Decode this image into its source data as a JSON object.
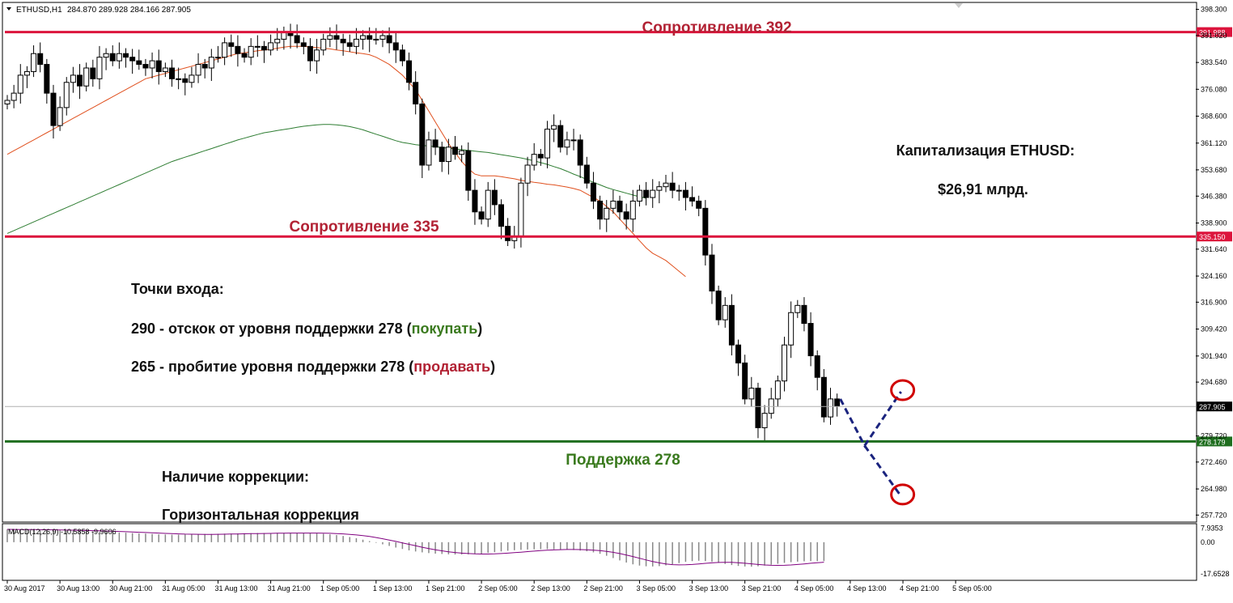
{
  "header": {
    "symbol": "ETHUSD,H1",
    "ohlc": "284.870 289.928 284.166 287.905"
  },
  "colors": {
    "resistance": "#dc143c",
    "support": "#1e6e1e",
    "ema_fast": "#e0501e",
    "ema_slow": "#2e7d32",
    "candle": "#000000",
    "macd": "#800080",
    "forecast": "#1a237e",
    "marker": "#d00000"
  },
  "annotations": {
    "resistance_392": "Сопротивление 392",
    "resistance_335": "Сопротивление 335",
    "support_278": "Поддержка 278",
    "cap_title": "Капитализация ETHUSD:",
    "cap_value": "$26,91 млрд.",
    "entry_title": "Точки входа:",
    "buy_prefix": "290 - отскок от уровня поддержки 278 (",
    "buy_word": "покупать",
    "buy_suffix": ")",
    "sell_prefix": "265 - пробитие уровня поддержки 278 (",
    "sell_word": "продавать",
    "sell_suffix": ")",
    "correction_title": "Наличие коррекции:",
    "correction_type": "Горизонтальная коррекция"
  },
  "chart_data": {
    "type": "candlestick",
    "price_axis": {
      "min": 256,
      "max": 400,
      "ticks": [
        "398.300",
        "391.020",
        "383.540",
        "376.080",
        "368.600",
        "361.120",
        "353.680",
        "346.380",
        "338.900",
        "331.640",
        "324.160",
        "316.900",
        "309.420",
        "301.940",
        "294.680",
        "279.720",
        "272.460",
        "264.980",
        "257.720"
      ]
    },
    "levels": [
      {
        "price": 391.988,
        "label": "391.988",
        "kind": "resistance"
      },
      {
        "price": 335.15,
        "label": "335.150",
        "kind": "resistance"
      },
      {
        "price": 278.179,
        "label": "278.179",
        "kind": "support"
      },
      {
        "price": 287.905,
        "label": "287.905",
        "kind": "current"
      }
    ],
    "time_labels": [
      "30 Aug 2017",
      "30 Aug 13:00",
      "30 Aug 21:00",
      "31 Aug 05:00",
      "31 Aug 13:00",
      "31 Aug 21:00",
      "1 Sep 05:00",
      "1 Sep 13:00",
      "1 Sep 21:00",
      "2 Sep 05:00",
      "2 Sep 13:00",
      "2 Sep 21:00",
      "3 Sep 05:00",
      "3 Sep 13:00",
      "3 Sep 21:00",
      "4 Sep 05:00",
      "4 Sep 13:00",
      "4 Sep 21:00",
      "5 Sep 05:00"
    ],
    "bars_per_label": 8,
    "closes": [
      373,
      375,
      380,
      381,
      386,
      383,
      375,
      366,
      371,
      378,
      380,
      377,
      382,
      379,
      385,
      386,
      384,
      386,
      385,
      384,
      383,
      382,
      384,
      381,
      382,
      379,
      379,
      378,
      380,
      383,
      382,
      385,
      385,
      389,
      388,
      386,
      385,
      388,
      388,
      387,
      389,
      390,
      392,
      391,
      389,
      388,
      384,
      387,
      390,
      391,
      390,
      389,
      388,
      390,
      391,
      390,
      390,
      391,
      389,
      387,
      384,
      378,
      372,
      355,
      362,
      360,
      356,
      360,
      358,
      359,
      348,
      342,
      340,
      348,
      344,
      338,
      334,
      335,
      350,
      355,
      358,
      357,
      365,
      366,
      360,
      362,
      362,
      355,
      350,
      345,
      340,
      343,
      345,
      342,
      340,
      345,
      348,
      346,
      348,
      349,
      350,
      348,
      348,
      346,
      345,
      343,
      330,
      320,
      312,
      316,
      305,
      300,
      290,
      293,
      282,
      286,
      290,
      295,
      305,
      314,
      316,
      311,
      302,
      296,
      285,
      290,
      288
    ],
    "ema_fast": [
      358,
      359,
      360,
      361,
      362,
      363,
      364,
      365,
      366,
      367,
      368,
      369,
      370,
      371,
      372,
      373,
      374,
      375,
      376,
      377,
      378,
      379,
      379.5,
      380,
      380.5,
      381,
      381.5,
      382,
      382.5,
      383,
      383.5,
      384,
      384.5,
      385,
      385.5,
      386,
      386.2,
      386.5,
      386.8,
      387,
      387.2,
      387.5,
      387.8,
      388,
      388,
      388,
      387.8,
      387.7,
      387.5,
      387.3,
      387,
      386.8,
      386.5,
      386.2,
      386,
      385.7,
      385,
      384,
      383,
      381.5,
      380,
      378,
      376,
      373,
      370,
      367,
      364,
      361,
      358.5,
      356,
      354,
      352.5,
      352,
      352,
      352,
      351.8,
      351.5,
      351.2,
      350.8,
      350.5,
      350.2,
      350,
      349.7,
      349.5,
      349.2,
      348.9,
      348.5,
      348,
      347,
      346,
      345,
      343.5,
      342,
      340,
      338,
      336,
      334,
      332,
      330.5,
      329.5,
      328.5,
      327,
      325.5,
      324
    ],
    "ema_slow": [
      336,
      336.8,
      337.6,
      338.4,
      339.2,
      340,
      340.8,
      341.6,
      342.4,
      343.2,
      344,
      344.8,
      345.6,
      346.4,
      347.2,
      348,
      348.8,
      349.6,
      350.4,
      351.2,
      352,
      352.8,
      353.6,
      354.4,
      355.2,
      356,
      356.6,
      357.2,
      357.8,
      358.4,
      359,
      359.6,
      360.2,
      360.8,
      361.4,
      362,
      362.5,
      363,
      363.5,
      364,
      364.3,
      364.6,
      364.9,
      365.2,
      365.5,
      365.8,
      366,
      366.2,
      366.3,
      366.3,
      366.2,
      366,
      365.7,
      365.3,
      364.8,
      364.2,
      363.6,
      363,
      362.4,
      361.8,
      361.3,
      361,
      360.7,
      360.5,
      360.3,
      360.1,
      359.9,
      359.7,
      359.5,
      359.3,
      359.1,
      358.9,
      358.7,
      358.5,
      358.2,
      357.9,
      357.6,
      357.3,
      357,
      356.6,
      356.2,
      355.7,
      355.2,
      354.6,
      354,
      353.3,
      352.5,
      351.8,
      351,
      350.2,
      349.5,
      348.8,
      348.2,
      347.7,
      347.2,
      346.7,
      346.2,
      345.8
    ],
    "macd_hist": [
      7.2,
      7.1,
      7.0,
      7.0,
      6.9,
      6.8,
      6.7,
      6.6,
      6.6,
      6.5,
      6.4,
      6.3,
      6.2,
      6.0,
      5.9,
      5.7,
      5.6,
      5.4,
      5.3,
      5.1,
      4.9,
      4.8,
      4.6,
      4.4,
      4.3,
      4.2,
      4.2,
      4.3,
      4.4,
      4.5,
      4.6,
      4.6,
      4.7,
      4.8,
      4.8,
      4.9,
      5.0,
      5.0,
      5.1,
      5.1,
      5.1,
      5.2,
      5.2,
      5.2,
      5.1,
      5.1,
      5.0,
      4.9,
      4.7,
      4.4,
      4.0,
      3.5,
      2.9,
      2.2,
      1.4,
      0.6,
      -0.3,
      -1.2,
      -2.1,
      -3.0,
      -3.8,
      -4.6,
      -5.2,
      -5.7,
      -6.1,
      -6.4,
      -6.6,
      -6.8,
      -6.9,
      -6.9,
      -6.8,
      -6.7,
      -6.4,
      -6.0,
      -5.6,
      -5.2,
      -4.8,
      -4.5,
      -4.3,
      -4.1,
      -4.0,
      -3.9,
      -3.9,
      -4.0,
      -4.1,
      -4.2,
      -4.4,
      -4.7,
      -5.1,
      -5.7,
      -6.5,
      -7.6,
      -8.9,
      -10.2,
      -11.4,
      -12.4,
      -13.1,
      -13.5,
      -13.6,
      -13.4,
      -13.0,
      -12.4,
      -11.7,
      -11.0,
      -10.6,
      -10.4,
      -10.6,
      -11.0,
      -11.6,
      -12.2,
      -12.8,
      -13.3,
      -13.6,
      -13.7,
      -13.5,
      -13.1,
      -12.6,
      -12.1,
      -11.6,
      -11.2,
      -10.9,
      -10.7,
      -10.6,
      -10.6,
      -10.6
    ],
    "macd_label": "MACD(12,26,9) -10.5858 -9.9606",
    "macd_axis": {
      "min": -20,
      "max": 9,
      "ticks": [
        "7.9353",
        "0.00",
        "-17.6528"
      ]
    },
    "forecast": {
      "start": 290,
      "pivot": 277,
      "buy_target": 292,
      "sell_target": 263
    }
  }
}
